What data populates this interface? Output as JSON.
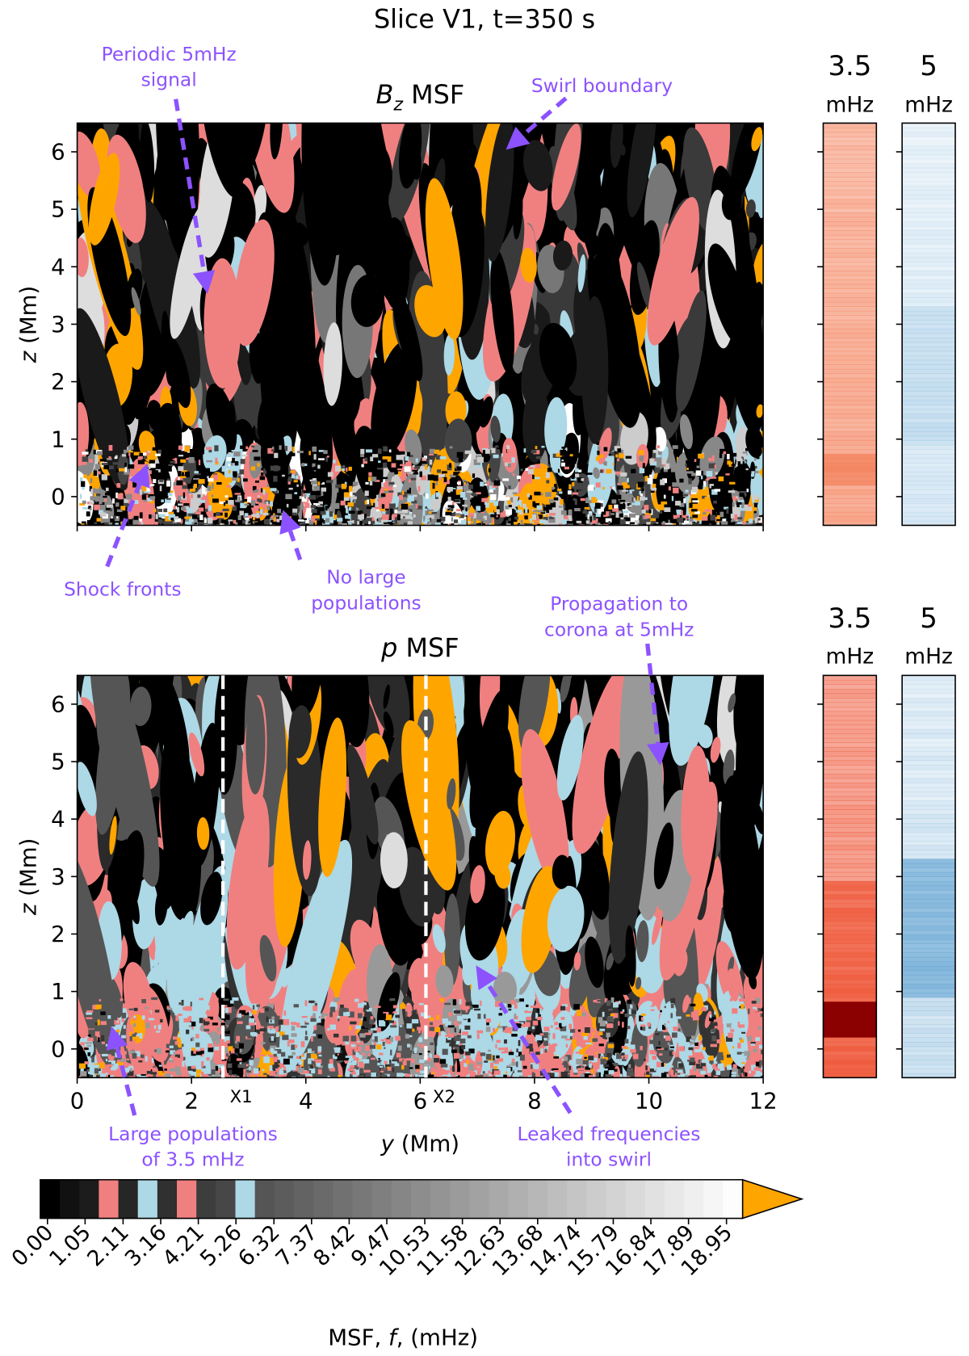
{
  "title": "Slice V1, t=350 s",
  "chart_data": [
    {
      "type": "heatmap",
      "title_symbol": "B",
      "title_sub": "z",
      "title_text": " MSF",
      "ylabel_symbol": "z",
      "ylabel_unit": " (Mm)",
      "xlim": [
        0,
        12
      ],
      "xticks": [
        0,
        2,
        4,
        6,
        8,
        10,
        12
      ],
      "ylim": [
        -0.5,
        6.5
      ],
      "yticks": [
        0,
        1,
        2,
        3,
        4,
        5,
        6
      ],
      "side_bars": [
        {
          "label": "3.5",
          "unit": "mHz",
          "color": "#f4845f"
        },
        {
          "label": "5",
          "unit": "mHz",
          "color": "#8fbfe0"
        }
      ],
      "annotations": [
        {
          "lines": [
            "Periodic 5mHz",
            "signal"
          ]
        },
        {
          "lines": [
            "Swirl boundary"
          ]
        },
        {
          "lines": [
            "Shock fronts"
          ]
        },
        {
          "lines": [
            "No large",
            "populations"
          ]
        }
      ]
    },
    {
      "type": "heatmap",
      "title_symbol": "p",
      "title_text": " MSF",
      "ylabel_symbol": "z",
      "ylabel_unit": " (Mm)",
      "xlabel_symbol": "y",
      "xlabel_unit": " (Mm)",
      "xlim": [
        0,
        12
      ],
      "xticks": [
        0,
        2,
        4,
        6,
        8,
        10,
        12
      ],
      "ylim": [
        -0.5,
        6.5
      ],
      "yticks": [
        0,
        1,
        2,
        3,
        4,
        5,
        6
      ],
      "vlines": [
        {
          "x": 2.55,
          "label": "X1"
        },
        {
          "x": 6.1,
          "label": "X2"
        }
      ],
      "side_bars": [
        {
          "label": "3.5",
          "unit": "mHz",
          "color": "#ef5a3c"
        },
        {
          "label": "5",
          "unit": "mHz",
          "color": "#6aa8d4"
        }
      ],
      "annotations": [
        {
          "lines": [
            "Propagation to",
            "corona at 5mHz"
          ]
        },
        {
          "lines": [
            "Large populations",
            "of 3.5 mHz"
          ]
        },
        {
          "lines": [
            "Leaked frequencies",
            "into swirl"
          ]
        }
      ]
    },
    {
      "type": "colorbar",
      "label_text": "MSF, ",
      "label_symbol": "f",
      "label_unit": ", (mHz)",
      "clim": [
        -0.2,
        19.4
      ],
      "ticks": [
        {
          "value": 0,
          "label": "0.00"
        },
        1.05,
        2.11,
        3.16,
        4.21,
        5.26,
        6.32,
        7.37,
        8.42,
        9.47,
        10.53,
        11.58,
        12.63,
        13.68,
        14.74,
        15.79,
        16.84,
        17.89,
        18.95
      ],
      "colors": [
        "#000000",
        "#111111",
        "#1c1c1c",
        "#f08080",
        "#262626",
        "#add8e6",
        "#303030",
        "#f08080",
        "#3d3d3d",
        "#474747",
        "#add8e6",
        "#555555",
        "#5c5c5c",
        "#636363",
        "#6a6a6a",
        "#717171",
        "#787878",
        "#7f7f7f",
        "#868686",
        "#8d8d8d",
        "#949494",
        "#9b9b9b",
        "#a2a2a2",
        "#a9a9a9",
        "#b0b0b0",
        "#b7b7b7",
        "#bebebe",
        "#c5c5c5",
        "#cccccc",
        "#d3d3d3",
        "#dadada",
        "#e1e1e1",
        "#e8e8e8",
        "#efefef",
        "#f6f6f6",
        "#fdfdfd"
      ],
      "extend_color": "#ffa500"
    }
  ]
}
